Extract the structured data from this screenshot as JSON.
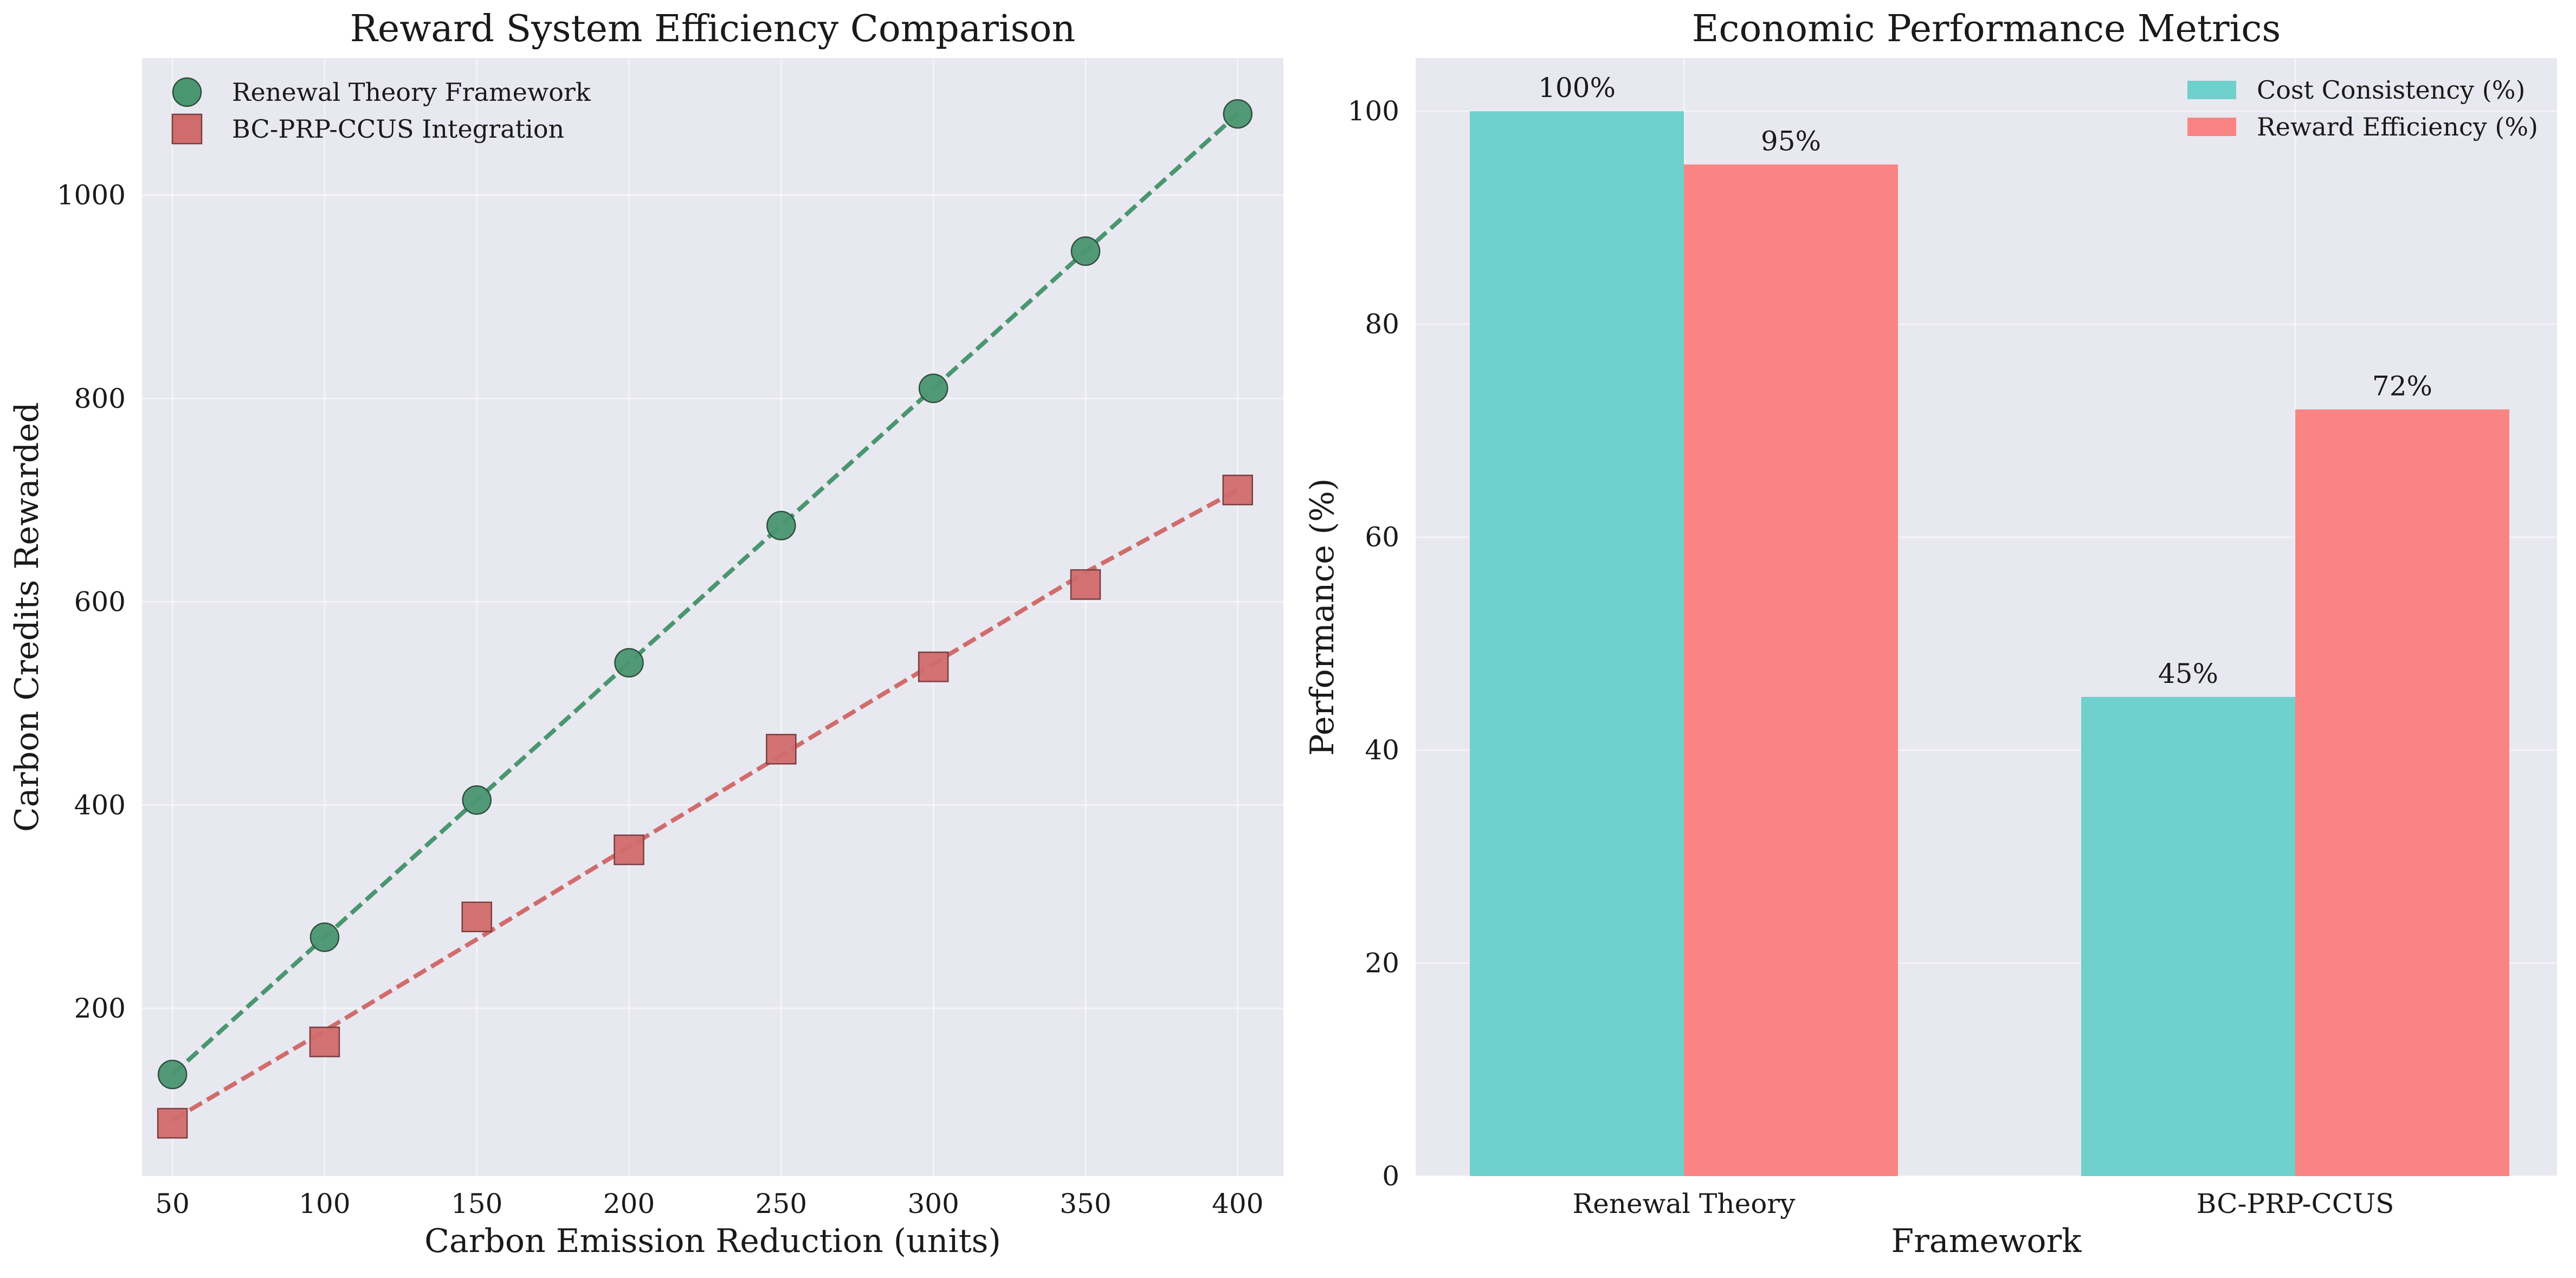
{
  "chart_data": [
    {
      "type": "scatter",
      "title": "Reward System Efficiency Comparison",
      "xlabel": "Carbon Emission Reduction (units)",
      "ylabel": "Carbon Credits Rewarded",
      "xlim": [
        40,
        415
      ],
      "ylim": [
        35,
        1135
      ],
      "xticks": [
        50,
        100,
        150,
        200,
        250,
        300,
        350,
        400
      ],
      "yticks": [
        200,
        400,
        600,
        800,
        1000
      ],
      "grid": true,
      "legend_position": "top-left",
      "series": [
        {
          "name": "Renewal Theory Framework",
          "marker": "circle",
          "color": "#4a9670",
          "x": [
            50,
            100,
            150,
            200,
            250,
            300,
            350,
            400
          ],
          "y": [
            135,
            270,
            405,
            540,
            675,
            810,
            945,
            1080
          ],
          "fit": [
            [
              50,
              135
            ],
            [
              400,
              1080
            ]
          ]
        },
        {
          "name": "BC-PRP-CCUS Integration",
          "marker": "square",
          "color": "#d16c6c",
          "x": [
            50,
            100,
            150,
            200,
            250,
            300,
            350,
            400
          ],
          "y": [
            87,
            167,
            290,
            356,
            455,
            536,
            617,
            710
          ],
          "fit": [
            [
              50,
              90
            ],
            [
              100,
              178
            ],
            [
              150,
              268
            ],
            [
              200,
              359
            ],
            [
              250,
              449
            ],
            [
              300,
              539
            ],
            [
              350,
              629
            ],
            [
              400,
              710
            ]
          ]
        }
      ]
    },
    {
      "type": "bar",
      "title": "Economic Performance Metrics",
      "xlabel": "Framework",
      "ylabel": "Performance (%)",
      "categories": [
        "Renewal Theory",
        "BC-PRP-CCUS"
      ],
      "ylim": [
        0,
        105
      ],
      "yticks": [
        0,
        20,
        40,
        60,
        80,
        100
      ],
      "grid": true,
      "legend_position": "top-right",
      "series": [
        {
          "name": "Cost Consistency (%)",
          "color": "#6fd0cc",
          "values": [
            100,
            45
          ],
          "labels": [
            "100%",
            "45%"
          ]
        },
        {
          "name": "Reward Efficiency (%)",
          "color": "#fa8484",
          "values": [
            95,
            72
          ],
          "labels": [
            "95%",
            "72%"
          ]
        }
      ]
    }
  ]
}
